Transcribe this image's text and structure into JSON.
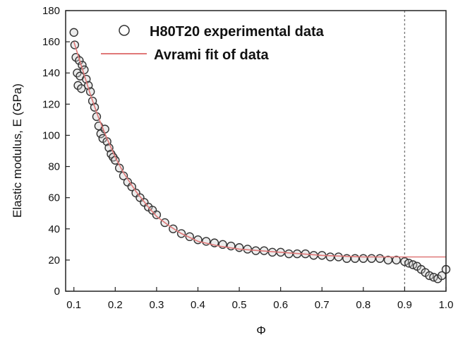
{
  "chart_data": {
    "type": "scatter",
    "xlabel": "Φ",
    "ylabel": "Elastic modulus, E (GPa)",
    "xlim": [
      0.08,
      1.0
    ],
    "ylim": [
      0,
      180
    ],
    "xticks": [
      "0.1",
      "0.2",
      "0.3",
      "0.4",
      "0.5",
      "0.6",
      "0.7",
      "0.8",
      "0.9",
      "1.0"
    ],
    "yticks": [
      "0",
      "20",
      "40",
      "60",
      "80",
      "100",
      "120",
      "140",
      "160",
      "180"
    ],
    "reference_line_x": 0.9,
    "legend_position": "top",
    "series": [
      {
        "name": "H80T20 experimental data",
        "kind": "scatter",
        "marker": "open-circle",
        "color": "#333333",
        "x": [
          0.1,
          0.102,
          0.105,
          0.108,
          0.11,
          0.113,
          0.115,
          0.118,
          0.12,
          0.125,
          0.13,
          0.135,
          0.14,
          0.145,
          0.15,
          0.155,
          0.16,
          0.165,
          0.17,
          0.175,
          0.18,
          0.185,
          0.19,
          0.195,
          0.2,
          0.21,
          0.22,
          0.23,
          0.24,
          0.25,
          0.26,
          0.27,
          0.28,
          0.29,
          0.3,
          0.32,
          0.34,
          0.36,
          0.38,
          0.4,
          0.42,
          0.44,
          0.46,
          0.48,
          0.5,
          0.52,
          0.54,
          0.56,
          0.58,
          0.6,
          0.62,
          0.64,
          0.66,
          0.68,
          0.7,
          0.72,
          0.74,
          0.76,
          0.78,
          0.8,
          0.82,
          0.84,
          0.86,
          0.88,
          0.9,
          0.91,
          0.92,
          0.93,
          0.94,
          0.95,
          0.96,
          0.97,
          0.98,
          0.99,
          1.0
        ],
        "y": [
          166,
          158,
          150,
          140,
          132,
          148,
          138,
          130,
          145,
          142,
          136,
          132,
          128,
          122,
          118,
          112,
          106,
          101,
          98,
          104,
          96,
          92,
          88,
          86,
          84,
          79,
          74,
          70,
          67,
          63,
          60,
          57,
          54,
          52,
          49,
          44,
          40,
          37,
          35,
          33,
          32,
          31,
          30,
          29,
          28,
          27,
          26,
          26,
          25,
          25,
          24,
          24,
          24,
          23,
          23,
          22,
          22,
          21,
          21,
          21,
          21,
          21,
          20,
          20,
          19,
          18,
          17,
          16,
          14,
          12,
          10,
          9,
          8,
          10,
          14
        ]
      },
      {
        "name": "Avrami fit of data",
        "kind": "line",
        "color": "#e07878",
        "x": [
          0.1,
          0.12,
          0.14,
          0.16,
          0.18,
          0.2,
          0.22,
          0.25,
          0.28,
          0.3,
          0.33,
          0.36,
          0.4,
          0.45,
          0.5,
          0.55,
          0.6,
          0.65,
          0.7,
          0.75,
          0.8,
          0.85,
          0.9,
          0.95,
          1.0
        ],
        "y": [
          160,
          143,
          126,
          111,
          98,
          86,
          76,
          64,
          54,
          48,
          42,
          37,
          32,
          29,
          27,
          26,
          25,
          24,
          23,
          22.5,
          22,
          22,
          22,
          22,
          22
        ]
      }
    ]
  }
}
